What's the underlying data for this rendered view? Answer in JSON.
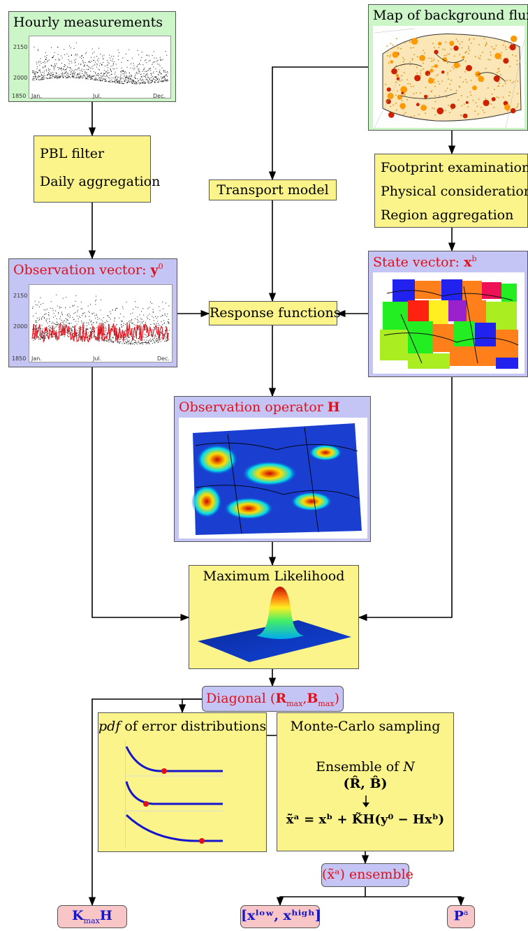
{
  "hourly": {
    "title": "Hourly measurements",
    "yticks": [
      "2150",
      "2000",
      "1850"
    ],
    "xticks": [
      "Jan.",
      "Jul.",
      "Dec."
    ]
  },
  "background": {
    "title": "Map of background fluxes"
  },
  "pbl": {
    "line1": "PBL filter",
    "line2": "Daily aggregation"
  },
  "transport": {
    "label": "Transport model"
  },
  "footprint": {
    "line1": "Footprint examination",
    "line2": "Physical considerations",
    "line3": "Region aggregation"
  },
  "obsvec": {
    "title": "Observation vector:",
    "symbol": "y",
    "sup": "0",
    "yticks": [
      "2150",
      "2000",
      "1850"
    ],
    "xticks": [
      "Jan.",
      "Jul.",
      "Dec."
    ]
  },
  "response": {
    "label": "Response functions"
  },
  "statevec": {
    "title": "State vector:",
    "symbol": "x",
    "sup": "b"
  },
  "operator": {
    "title": "Observation operator",
    "symbol": "H"
  },
  "ml": {
    "title": "Maximum Likelihood"
  },
  "diag": {
    "label": "Diagonal",
    "open": "(",
    "r": "R",
    "b": "B",
    "sub": "max",
    "comma": ",",
    "close": ")"
  },
  "pdf": {
    "italic": "pdf",
    "rest": "of error distributions"
  },
  "mc": {
    "title": "Monte-Carlo sampling",
    "ensemble": "Ensemble of",
    "n": "N",
    "rb": "(R̂, B̂)",
    "formula": "x̃ᵃ = xᵇ + K̃H(y⁰ − Hxᵇ)"
  },
  "ens": {
    "label": "(x̃ᵃ) ensemble"
  },
  "out": {
    "k": "K",
    "ksub": "max",
    "h": "H",
    "range": "[xˡᵒʷ, xʰⁱᵍʰ]",
    "p": "P",
    "psup": "a"
  },
  "colors": {
    "green": "#ccf5c8",
    "yellow": "#faf48a",
    "purple": "#c5c5f5",
    "pink": "#f8c6c6",
    "red": "#e0101a",
    "curve": "#1515cc"
  }
}
